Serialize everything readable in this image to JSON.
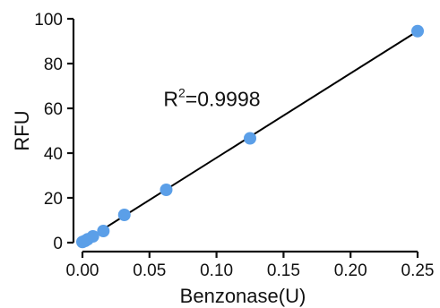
{
  "chart_data": {
    "type": "scatter",
    "xlabel": "Benzonase(U)",
    "ylabel": "RFU",
    "xlim": [
      0,
      0.25
    ],
    "ylim": [
      0,
      100
    ],
    "x_ticks": [
      0.0,
      0.05,
      0.1,
      0.15,
      0.2,
      0.25
    ],
    "x_tick_labels": [
      "0.00",
      "0.05",
      "0.10",
      "0.15",
      "0.20",
      "0.25"
    ],
    "y_ticks": [
      0,
      20,
      40,
      60,
      80,
      100
    ],
    "y_tick_labels": [
      "0",
      "20",
      "40",
      "60",
      "80",
      "100"
    ],
    "grid": false,
    "series": [
      {
        "x": [
          0.0,
          0.002,
          0.0039,
          0.0078,
          0.0156,
          0.03125,
          0.0625,
          0.125,
          0.25
        ],
        "y": [
          0.3,
          0.8,
          1.5,
          2.8,
          5.2,
          12.4,
          23.6,
          46.6,
          94.5
        ],
        "color": "#5b9fe8"
      }
    ],
    "fit_line": {
      "x": [
        0,
        0.25
      ],
      "y": [
        0.2,
        94.5
      ],
      "color": "#000000"
    },
    "annotation": {
      "prefix": "R",
      "sup": "2",
      "text": "=0.9998",
      "x": 0.035,
      "y": 65
    }
  }
}
